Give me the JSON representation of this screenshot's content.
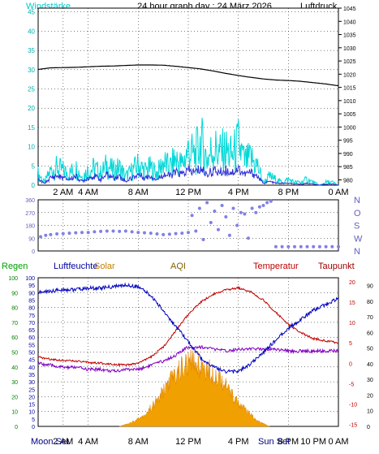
{
  "header": {
    "left_label": "Windstärke",
    "title": "24 hour graph day : 24 März 2026",
    "right_label": "Luftdruck"
  },
  "colors": {
    "windspeed": "#00d8d8",
    "windavg": "#3030d8",
    "pressure": "#000000",
    "direction": "#8080e8",
    "humidity": "#0000c0",
    "temperature": "#c00000",
    "dewpoint": "#a00000",
    "solar": "#f0a000",
    "aqi": "#8000c0",
    "grid": "#000000"
  },
  "bottom_labels": {
    "regen": "Regen",
    "luftfeuchte": "Luftfeuchte",
    "solar": "Solar",
    "aqi": "AQI",
    "temperatur": "Temperatur",
    "taupunkt": "Taupunkt",
    "moon_set": "Moon Set",
    "sun_set": "Sun Set"
  },
  "x_ticks": [
    "2 AM",
    "4 AM",
    "8 AM",
    "12 PM",
    "4 PM",
    "8 PM",
    "0 AM"
  ],
  "x_ticks_bottom": [
    "2 AM",
    "4 AM",
    "8 AM",
    "12 PM",
    "4 PM",
    "8 PM",
    "10 PM",
    "0 AM"
  ],
  "chart_data": [
    {
      "type": "line",
      "name": "wind-pressure",
      "title": "24 hour graph day : 24 März 2026",
      "xlabel": "",
      "ylabel": "Windstärke",
      "y2label": "Luftdruck",
      "x_unit": "hour",
      "xlim": [
        0,
        24
      ],
      "ylim": [
        0,
        46
      ],
      "y_ticks": [
        0,
        5,
        10,
        15,
        20,
        25,
        30,
        35,
        40,
        45
      ],
      "y2lim": [
        978,
        1045
      ],
      "y2_ticks": [
        980,
        985,
        990,
        995,
        1000,
        1005,
        1010,
        1015,
        1020,
        1025,
        1030,
        1035,
        1040,
        1045
      ],
      "grid": true,
      "series": [
        {
          "axis": "y2",
          "x": [
            0,
            1,
            2,
            3,
            4,
            5,
            6,
            7,
            8,
            9,
            10,
            11,
            12,
            13,
            14,
            15,
            16,
            17,
            18,
            19,
            20,
            21,
            22,
            23,
            24
          ],
          "values": [
            1021.8,
            1022.4,
            1022.5,
            1022.6,
            1022.8,
            1023.0,
            1023.1,
            1023.3,
            1023.5,
            1023.5,
            1023.4,
            1023.0,
            1022.5,
            1022.0,
            1021.2,
            1020.3,
            1019.5,
            1018.8,
            1018.2,
            1017.8,
            1017.6,
            1017.3,
            1016.8,
            1016.3,
            1015.6
          ]
        },
        {
          "axis": "y",
          "x": [
            0,
            0.5,
            1,
            1.5,
            2,
            2.5,
            3,
            3.5,
            4,
            4.5,
            5,
            5.5,
            6,
            6.5,
            7,
            7.5,
            8,
            8.5,
            9,
            9.5,
            10,
            10.5,
            11,
            11.5,
            12,
            12.5,
            13,
            13.5,
            14,
            14.5,
            15,
            15.5,
            16,
            16.5,
            17,
            17.5,
            18,
            18.5,
            19,
            19.5,
            20,
            20.5,
            21,
            21.5,
            22,
            22.5,
            23,
            23.5,
            24
          ],
          "values": [
            4,
            1,
            5,
            6,
            5,
            4,
            6,
            3,
            5,
            6,
            4,
            7,
            5,
            6,
            3,
            5,
            7,
            5,
            6,
            4,
            8,
            6,
            9,
            7,
            12,
            10,
            15,
            9,
            13,
            11,
            12,
            10,
            14,
            8,
            9,
            7,
            1,
            3,
            2,
            1,
            2,
            1,
            1,
            2,
            1,
            0,
            1,
            1,
            0
          ]
        },
        {
          "axis": "y",
          "x": [
            0,
            0.5,
            1,
            1.5,
            2,
            2.5,
            3,
            3.5,
            4,
            4.5,
            5,
            5.5,
            6,
            6.5,
            7,
            7.5,
            8,
            8.5,
            9,
            9.5,
            10,
            10.5,
            11,
            11.5,
            12,
            12.5,
            13,
            13.5,
            14,
            14.5,
            15,
            15.5,
            16,
            16.5,
            17,
            17.5,
            18,
            18.5,
            19,
            19.5,
            20,
            20.5,
            21,
            21.5,
            22,
            22.5,
            23,
            23.5,
            24
          ],
          "values": [
            1.5,
            0.5,
            2,
            2.5,
            2,
            1.5,
            2.5,
            1,
            2,
            2.5,
            1.5,
            3,
            2,
            2.5,
            1,
            2,
            3,
            2,
            2.5,
            1.5,
            3,
            2.5,
            3.5,
            3,
            4,
            3.5,
            4.5,
            3,
            4,
            3.5,
            4,
            3.5,
            4.5,
            3,
            3.5,
            2.5,
            0.5,
            1,
            0.5,
            0.5,
            0.5,
            0.3,
            0.3,
            0.5,
            0.3,
            0,
            0.3,
            0.3,
            0
          ]
        }
      ]
    },
    {
      "type": "scatter",
      "name": "wind-direction",
      "x_unit": "hour",
      "xlim": [
        0,
        24
      ],
      "ylim": [
        0,
        360
      ],
      "y_ticks": [
        0,
        90,
        180,
        270,
        360
      ],
      "y_tick_labels": [
        "0",
        "90",
        "180",
        "270",
        "360"
      ],
      "y2_tick_labels": [
        "N",
        "W",
        "S",
        "O",
        "N"
      ],
      "grid": true,
      "series": [
        {
          "x": [
            0.2,
            0.6,
            1.0,
            1.5,
            2.0,
            2.5,
            3.0,
            3.5,
            4.0,
            4.5,
            5.0,
            5.5,
            6.0,
            6.5,
            7.0,
            7.5,
            8.0,
            8.5,
            9.0,
            9.5,
            10.0,
            10.5,
            11.0,
            11.5,
            12.0,
            12.3,
            12.6,
            12.9,
            13.2,
            13.5,
            13.8,
            14.1,
            14.4,
            14.7,
            15.0,
            15.3,
            15.6,
            15.9,
            16.2,
            16.5,
            16.8,
            17.1,
            17.4,
            17.7,
            18.0,
            18.3,
            18.6,
            19.0,
            19.5,
            20.0,
            20.5,
            21.0,
            21.5,
            22.0,
            22.5,
            23.0,
            23.5,
            24.0
          ],
          "values": [
            100,
            110,
            115,
            120,
            122,
            125,
            128,
            130,
            130,
            135,
            138,
            140,
            140,
            138,
            140,
            135,
            130,
            128,
            125,
            120,
            115,
            118,
            122,
            125,
            130,
            250,
            140,
            300,
            80,
            340,
            200,
            280,
            150,
            320,
            240,
            110,
            300,
            180,
            270,
            260,
            90,
            300,
            270,
            310,
            320,
            340,
            350,
            30,
            30,
            30,
            30,
            30,
            30,
            30,
            30,
            30,
            30,
            30
          ]
        }
      ]
    },
    {
      "type": "line",
      "name": "humidity-temperature-solar",
      "x_unit": "hour",
      "xlim": [
        0,
        24
      ],
      "ylabel": "Regen",
      "y_ticks": [
        0,
        5,
        10,
        15,
        20,
        25,
        30,
        35,
        40,
        45,
        50,
        55,
        60,
        65,
        70,
        75,
        80,
        85,
        90,
        95,
        100
      ],
      "ylim": [
        0,
        100
      ],
      "y2_ticks": [
        -15,
        -10,
        -5,
        0,
        5,
        10,
        15,
        20
      ],
      "y2lim": [
        -15.5,
        21
      ],
      "y3_ticks": [
        0,
        10,
        20,
        30,
        40,
        50,
        60,
        70,
        80,
        90
      ],
      "y3lim": [
        0,
        95
      ],
      "grid": true,
      "series": [
        {
          "name": "Luftfeuchte",
          "axis": "y",
          "x": [
            0,
            1,
            2,
            3,
            4,
            5,
            6,
            7,
            8,
            9,
            10,
            11,
            12,
            13,
            14,
            15,
            16,
            17,
            18,
            19,
            20,
            21,
            22,
            23,
            24
          ],
          "values": [
            90,
            91,
            92,
            92,
            93,
            93,
            94,
            95,
            94,
            88,
            78,
            67,
            57,
            46,
            40,
            37,
            37,
            42,
            50,
            58,
            66,
            72,
            78,
            82,
            86
          ]
        },
        {
          "name": "Temperatur",
          "axis": "y2",
          "x": [
            0,
            1,
            2,
            3,
            4,
            5,
            6,
            7,
            8,
            9,
            10,
            11,
            12,
            13,
            14,
            15,
            16,
            17,
            18,
            19,
            20,
            21,
            22,
            23,
            24
          ],
          "values": [
            1.5,
            1.0,
            0.7,
            0.5,
            0.2,
            0,
            -0.2,
            -0.5,
            0,
            1.5,
            4,
            8,
            12,
            15,
            17,
            18,
            18.5,
            17.5,
            15.5,
            12.5,
            9.5,
            7.5,
            6,
            5.5,
            5
          ]
        },
        {
          "name": "Taupunkt",
          "axis": "y2",
          "x": [
            0,
            1,
            2,
            3,
            4,
            5,
            6,
            7,
            8,
            9,
            10,
            11,
            12,
            13,
            14,
            15,
            16,
            17,
            18,
            19,
            20,
            21,
            22,
            23,
            24
          ],
          "values": [
            0,
            -0.5,
            -1,
            -1,
            -1.5,
            -1.5,
            -2,
            -1.5,
            -1.5,
            -0.5,
            0.5,
            2,
            4,
            4,
            3.5,
            3,
            3.5,
            3.5,
            3.5,
            3.5,
            3,
            3,
            3,
            3,
            3
          ]
        },
        {
          "name": "Solar",
          "axis": "y3",
          "type": "area",
          "x": [
            6.5,
            7.5,
            8.5,
            9.5,
            10.5,
            11.5,
            12.5,
            13.5,
            14.5,
            15.5,
            16.5,
            17.5,
            18.5
          ],
          "values": [
            0,
            3,
            8,
            18,
            32,
            42,
            46,
            40,
            36,
            22,
            12,
            4,
            0
          ]
        }
      ]
    }
  ]
}
